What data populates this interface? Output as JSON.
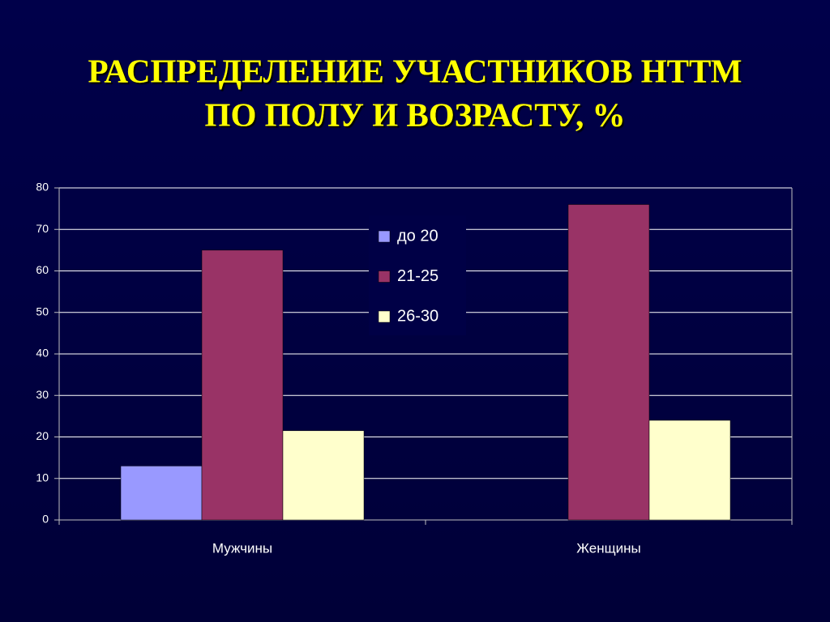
{
  "chart_data": {
    "type": "bar",
    "title": [
      "РАСПРЕДЕЛЕНИЕ УЧАСТНИКОВ НТТМ",
      "ПО ПОЛУ И ВОЗРАСТУ, %"
    ],
    "categories": [
      "Мужчины",
      "Женщины"
    ],
    "series": [
      {
        "name": "до 20",
        "color": "#9999ff",
        "values": [
          13,
          0
        ]
      },
      {
        "name": "21-25",
        "color": "#993366",
        "values": [
          65,
          76
        ]
      },
      {
        "name": "26-30",
        "color": "#ffffcc",
        "values": [
          21.5,
          24
        ]
      }
    ],
    "ylim": [
      0,
      80
    ],
    "yticks": [
      0,
      10,
      20,
      30,
      40,
      50,
      60,
      70,
      80
    ],
    "grid": true,
    "legend": "inside-top"
  }
}
